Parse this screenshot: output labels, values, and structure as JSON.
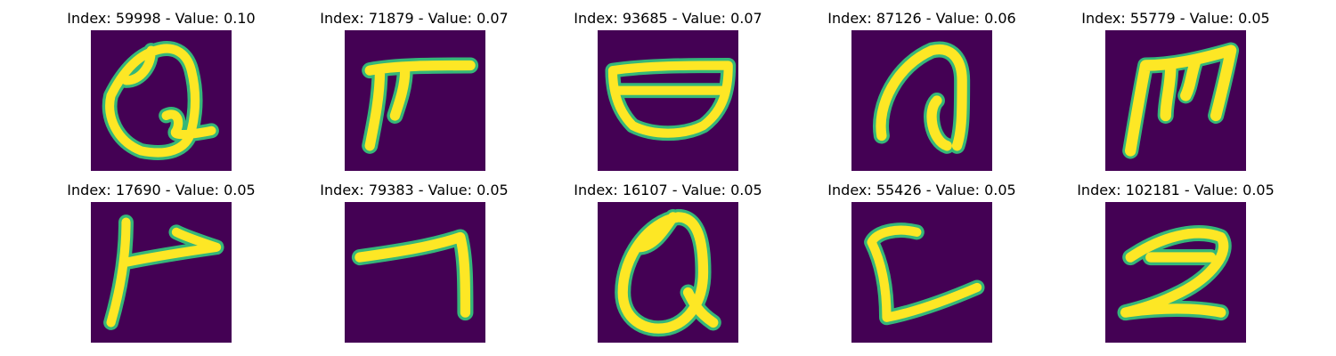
{
  "panels": [
    {
      "index": "59998",
      "value": "0.10",
      "title": "Index: 59998 - Value: 0.10"
    },
    {
      "index": "71879",
      "value": "0.07",
      "title": "Index: 71879 - Value: 0.07"
    },
    {
      "index": "93685",
      "value": "0.07",
      "title": "Index: 93685 - Value: 0.07"
    },
    {
      "index": "87126",
      "value": "0.06",
      "title": "Index: 87126 - Value: 0.06"
    },
    {
      "index": "55779",
      "value": "0.05",
      "title": "Index: 55779 - Value: 0.05"
    },
    {
      "index": "17690",
      "value": "0.05",
      "title": "Index: 17690 - Value: 0.05"
    },
    {
      "index": "79383",
      "value": "0.05",
      "title": "Index: 79383 - Value: 0.05"
    },
    {
      "index": "16107",
      "value": "0.05",
      "title": "Index: 16107 - Value: 0.05"
    },
    {
      "index": "55426",
      "value": "0.05",
      "title": "Index: 55426 - Value: 0.05"
    },
    {
      "index": "102181",
      "value": "0.05",
      "title": "Index: 102181 - Value: 0.05"
    }
  ],
  "colors": {
    "background": "#440154",
    "stroke": "#fde725",
    "edge": "#35b779"
  }
}
